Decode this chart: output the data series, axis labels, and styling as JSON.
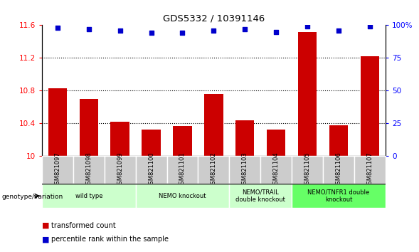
{
  "title": "GDS5332 / 10391146",
  "samples": [
    "GSM821097",
    "GSM821098",
    "GSM821099",
    "GSM821100",
    "GSM821101",
    "GSM821102",
    "GSM821103",
    "GSM821104",
    "GSM821105",
    "GSM821106",
    "GSM821107"
  ],
  "bar_values": [
    10.83,
    10.7,
    10.42,
    10.33,
    10.37,
    10.76,
    10.44,
    10.33,
    11.52,
    10.38,
    11.22
  ],
  "dot_values": [
    98,
    97,
    96,
    94,
    94,
    96,
    97,
    95,
    99,
    96,
    99
  ],
  "bar_color": "#cc0000",
  "dot_color": "#0000cc",
  "ylim_left": [
    10,
    11.6
  ],
  "ylim_right": [
    0,
    100
  ],
  "yticks_left": [
    10,
    10.4,
    10.8,
    11.2,
    11.6
  ],
  "yticks_right": [
    0,
    25,
    50,
    75,
    100
  ],
  "ytick_labels_left": [
    "10",
    "10.4",
    "10.8",
    "11.2",
    "11.6"
  ],
  "ytick_labels_right": [
    "0",
    "25",
    "50",
    "75",
    "100%"
  ],
  "grid_values": [
    10.4,
    10.8,
    11.2
  ],
  "groups": [
    {
      "label": "wild type",
      "start": 0,
      "end": 2,
      "color": "#ccffcc"
    },
    {
      "label": "NEMO knockout",
      "start": 3,
      "end": 5,
      "color": "#ccffcc"
    },
    {
      "label": "NEMO/TRAIL\ndouble knockout",
      "start": 6,
      "end": 7,
      "color": "#ccffcc"
    },
    {
      "label": "NEMO/TNFR1 double\nknockout",
      "start": 8,
      "end": 10,
      "color": "#66ff66"
    }
  ],
  "genotype_label": "genotype/variation",
  "legend_bar_label": "transformed count",
  "legend_dot_label": "percentile rank within the sample",
  "bar_width": 0.6,
  "background_color": "#ffffff",
  "plot_bg_color": "#ffffff",
  "sample_box_color": "#cccccc"
}
